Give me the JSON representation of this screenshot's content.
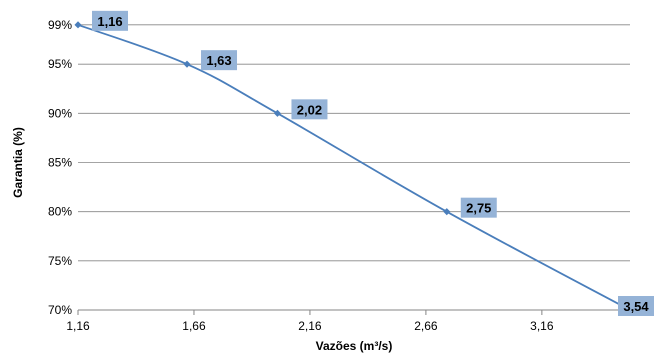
{
  "chart_data": {
    "type": "line",
    "title": "",
    "xlabel": "Vazões (m³/s)",
    "ylabel": "Garantia (%)",
    "xlim": [
      1.16,
      3.54
    ],
    "ylim": [
      70,
      100
    ],
    "x_ticks": [
      {
        "value": 1.16,
        "label": "1,16"
      },
      {
        "value": 1.66,
        "label": "1,66"
      },
      {
        "value": 2.16,
        "label": "2,16"
      },
      {
        "value": 2.66,
        "label": "2,66"
      },
      {
        "value": 3.16,
        "label": "3,16"
      }
    ],
    "y_ticks": [
      {
        "value": 70,
        "label": "70%"
      },
      {
        "value": 75,
        "label": "75%"
      },
      {
        "value": 80,
        "label": "80%"
      },
      {
        "value": 85,
        "label": "85%"
      },
      {
        "value": 90,
        "label": "90%"
      },
      {
        "value": 95,
        "label": "95%"
      },
      {
        "value": 99,
        "label": "99%"
      }
    ],
    "grid": true,
    "legend": "none",
    "series": [
      {
        "x": [
          1.16,
          1.63,
          2.02,
          2.75,
          3.54
        ],
        "y": [
          99,
          95,
          90,
          80,
          70
        ],
        "data_labels": [
          "1,16",
          "1,63",
          "2,02",
          "2,75",
          "3,54"
        ],
        "color": "#4A7EBB"
      }
    ],
    "label_box_color": "#95B3D7",
    "grid_color": "#868686"
  }
}
